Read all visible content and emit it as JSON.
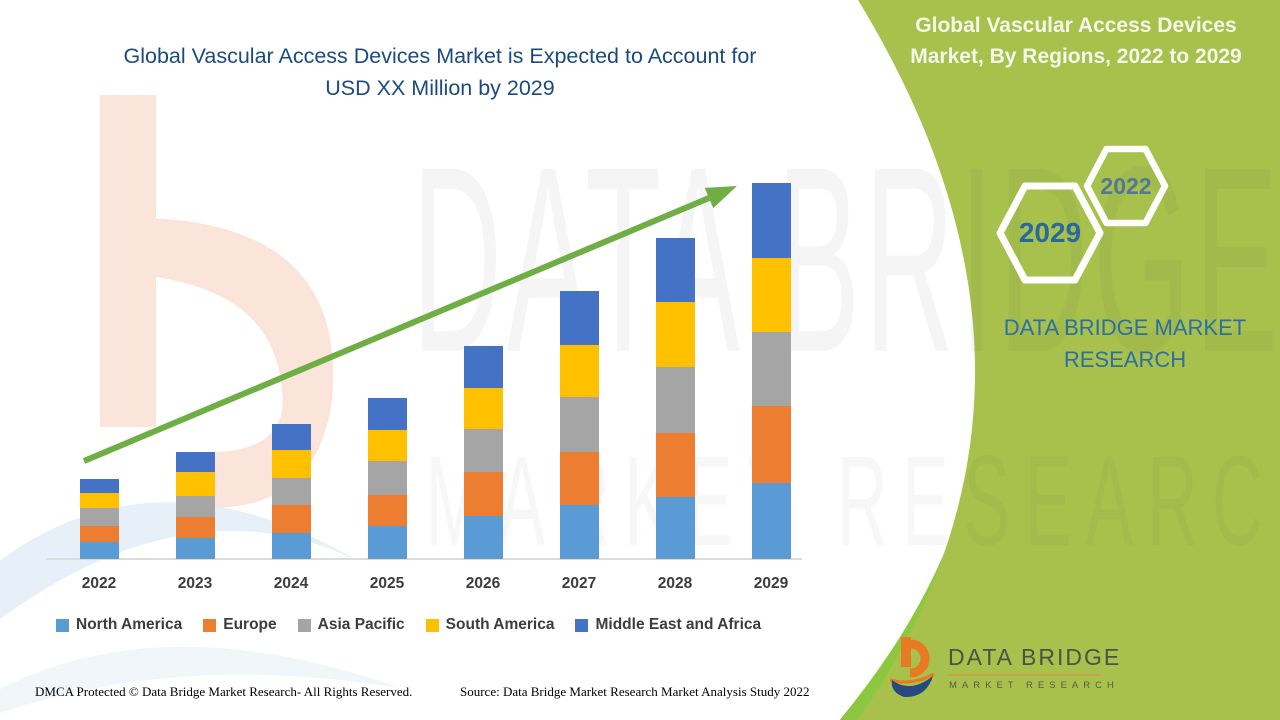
{
  "page": {
    "title_line1": "Global Vascular Access Devices Market is Expected to Account for",
    "title_line2": "USD XX Million by 2029",
    "footer_dmca": "DMCA Protected © Data Bridge Market Research- All Rights Reserved.",
    "footer_source": "Source: Data Bridge Market Research Market Analysis Study 2022"
  },
  "side_panel": {
    "heading_line1": "Global Vascular Access Devices",
    "heading_line2": "Market, By Regions, 2022 to 2029",
    "badge_start_year": "2022",
    "badge_end_year": "2029",
    "brand_line1": "DATA BRIDGE MARKET",
    "brand_line2": "RESEARCH",
    "panel_color": "#a7c14c",
    "panel_accent_color": "#8dc63f"
  },
  "logo": {
    "name": "DATA BRIDGE",
    "subtitle": "MARKET RESEARCH"
  },
  "watermark": {
    "line1": "DATA BRIDGE",
    "line2": "MARKET RESEARCH"
  },
  "chart_data": {
    "type": "bar",
    "stacked": true,
    "title": "Global Vascular Access Devices Market is Expected to Account for USD XX Million by 2029",
    "xlabel": "",
    "ylabel": "",
    "units": "relative units (actual values shown as USD XX Million)",
    "value_axis_shown": false,
    "gridlines": false,
    "legend_position": "bottom",
    "trend_arrow": true,
    "trend_arrow_color": "#6fae44",
    "categories": [
      "2022",
      "2023",
      "2024",
      "2025",
      "2026",
      "2027",
      "2028",
      "2029"
    ],
    "series": [
      {
        "name": "North America",
        "color": "#5b9bd5",
        "values": [
          17,
          21,
          26,
          33,
          43,
          54,
          62,
          76
        ]
      },
      {
        "name": "Europe",
        "color": "#ed7d31",
        "values": [
          16,
          21,
          28,
          31,
          44,
          53,
          64,
          77
        ]
      },
      {
        "name": "Asia Pacific",
        "color": "#a5a5a5",
        "values": [
          18,
          21,
          27,
          34,
          43,
          55,
          66,
          74
        ]
      },
      {
        "name": "South America",
        "color": "#ffc000",
        "values": [
          15,
          24,
          28,
          31,
          41,
          52,
          65,
          74
        ]
      },
      {
        "name": "Middle East and Africa",
        "color": "#4472c4",
        "values": [
          14,
          20,
          26,
          32,
          42,
          54,
          64,
          75
        ]
      }
    ],
    "totals": [
      80,
      107,
      135,
      161,
      213,
      268,
      321,
      376
    ]
  }
}
